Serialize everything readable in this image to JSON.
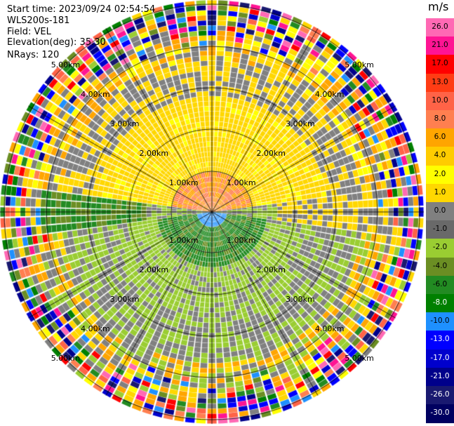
{
  "header": {
    "start_time": "Start time: 2023/09/24 02:54:54",
    "instrument": "WLS200s-181",
    "field": "Field: VEL",
    "elevation": "Elevation(deg): 35.30",
    "nrays": "NRays: 120"
  },
  "colorbar": {
    "units": "m/s",
    "ticks": [
      "26.0",
      "21.0",
      "17.0",
      "13.0",
      "10.0",
      "8.0",
      "6.0",
      "4.0",
      "2.0",
      "1.0",
      "0.0",
      "-1.0",
      "-2.0",
      "-4.0",
      "-6.0",
      "-8.0",
      "-10.0",
      "-13.0",
      "-17.0",
      "-21.0",
      "-26.0",
      "-30.0"
    ],
    "colors": [
      "#ff69b4",
      "#ff1493",
      "#ff0000",
      "#ff3c14",
      "#ff6347",
      "#ff7f50",
      "#ffa500",
      "#ffcc00",
      "#ffff00",
      "#ffd700",
      "#808080",
      "#696969",
      "#9acd32",
      "#6b8e23",
      "#228b22",
      "#008000",
      "#1e90ff",
      "#0000ff",
      "#0000cd",
      "#00008b",
      "#191970",
      "#000060"
    ]
  },
  "chart_data": {
    "type": "heatmap",
    "subtype": "ppi-radar",
    "title": "",
    "field": "VEL",
    "units": "m/s",
    "elevation_deg": 35.3,
    "n_rays": 120,
    "range_ring_labels": [
      "1.00km",
      "2.00km",
      "3.00km",
      "4.00km",
      "5.00km"
    ],
    "range_rings_km": [
      1,
      2,
      3,
      4,
      5
    ],
    "azimuth_spokes_deg": [
      0,
      30,
      60,
      90,
      120,
      150,
      180,
      210,
      240,
      270,
      300,
      330
    ],
    "color_scale_min": -30.0,
    "color_scale_max": 26.0,
    "approx_pattern": "positive velocities (yellow/orange) to the north, negative (green/grey) to the south; noisy multicolor far ranges"
  }
}
